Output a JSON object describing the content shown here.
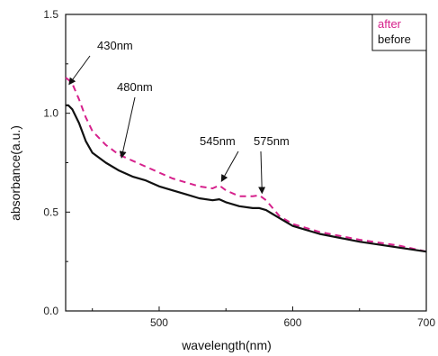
{
  "chart_data": {
    "type": "line",
    "xlabel": "wavelength(nm)",
    "ylabel": "absorbance(a.u.)",
    "xlim": [
      430,
      700
    ],
    "ylim": [
      0,
      1.5
    ],
    "x_ticks": [
      500,
      600,
      700
    ],
    "x_tick_labels": [
      "500",
      "600",
      "700"
    ],
    "y_ticks": [
      0,
      0.5,
      1.0,
      1.5
    ],
    "y_tick_labels": [
      "0.0",
      "0.5",
      "1.0",
      "1.5"
    ],
    "grid": false,
    "legend_position": "top-right",
    "series": [
      {
        "name": "after",
        "color": "#d6218c",
        "dash": "dashed",
        "x": [
          430,
          432,
          435,
          440,
          445,
          450,
          460,
          470,
          480,
          490,
          500,
          510,
          520,
          530,
          540,
          545,
          550,
          560,
          570,
          575,
          580,
          585,
          590,
          600,
          620,
          650,
          680,
          700
        ],
        "y": [
          1.18,
          1.17,
          1.15,
          1.07,
          0.98,
          0.91,
          0.84,
          0.79,
          0.76,
          0.73,
          0.7,
          0.67,
          0.65,
          0.63,
          0.62,
          0.635,
          0.61,
          0.58,
          0.58,
          0.585,
          0.56,
          0.52,
          0.48,
          0.44,
          0.4,
          0.36,
          0.33,
          0.3
        ]
      },
      {
        "name": "before",
        "color": "#111111",
        "dash": "solid",
        "x": [
          430,
          432,
          435,
          440,
          445,
          450,
          460,
          470,
          480,
          490,
          500,
          510,
          520,
          530,
          540,
          545,
          550,
          560,
          570,
          575,
          580,
          585,
          590,
          600,
          620,
          650,
          680,
          700
        ],
        "y": [
          1.04,
          1.04,
          1.02,
          0.95,
          0.86,
          0.8,
          0.75,
          0.71,
          0.68,
          0.66,
          0.63,
          0.61,
          0.59,
          0.57,
          0.56,
          0.565,
          0.55,
          0.53,
          0.52,
          0.52,
          0.51,
          0.49,
          0.47,
          0.43,
          0.39,
          0.35,
          0.32,
          0.3
        ]
      }
    ],
    "annotations": [
      {
        "text": "430nm",
        "x": 433,
        "y": 1.15
      },
      {
        "text": "480nm",
        "x": 472,
        "y": 0.78
      },
      {
        "text": "545nm",
        "x": 547,
        "y": 0.66
      },
      {
        "text": "575nm",
        "x": 577,
        "y": 0.6
      }
    ]
  }
}
